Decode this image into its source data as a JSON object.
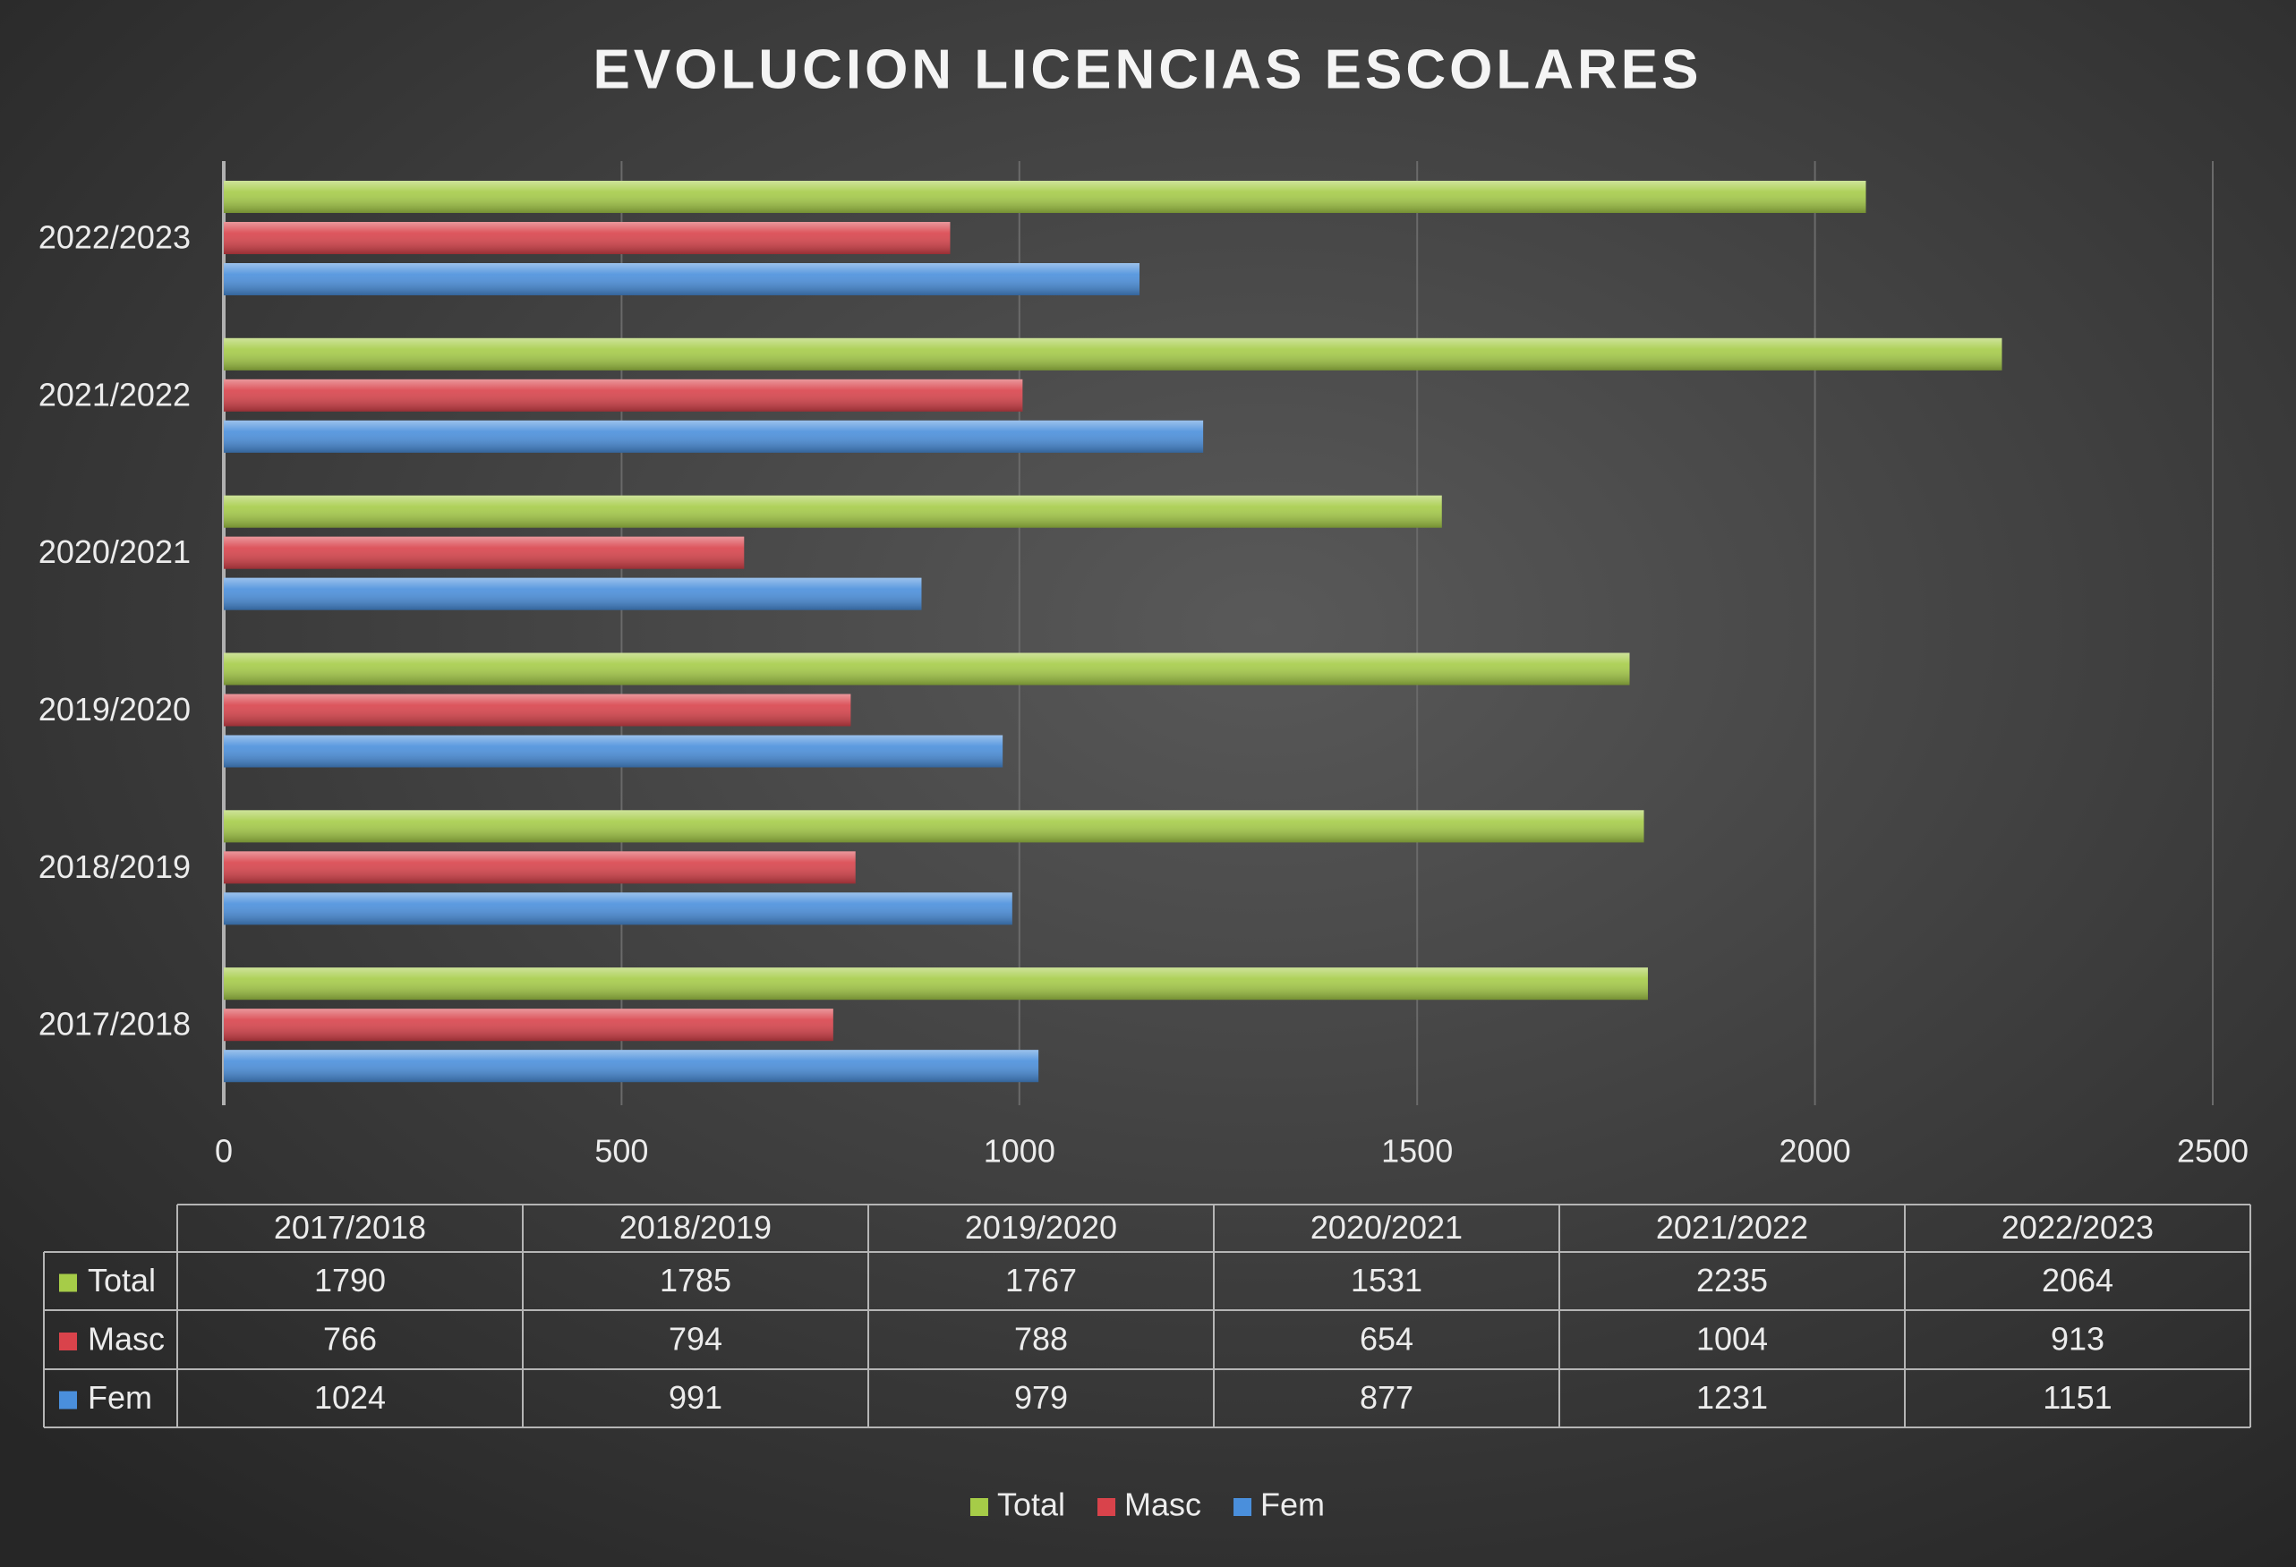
{
  "chart_data": {
    "type": "bar",
    "orientation": "horizontal",
    "title": "EVOLUCION LICENCIAS ESCOLARES",
    "categories": [
      "2017/2018",
      "2018/2019",
      "2019/2020",
      "2020/2021",
      "2021/2022",
      "2022/2023"
    ],
    "series": [
      {
        "name": "Total",
        "color": "#a6cc48",
        "values": [
          1790,
          1785,
          1767,
          1531,
          2235,
          2064
        ]
      },
      {
        "name": "Masc",
        "color": "#d9434b",
        "values": [
          766,
          794,
          788,
          654,
          1004,
          913
        ]
      },
      {
        "name": "Fem",
        "color": "#4a8fdc",
        "values": [
          1024,
          991,
          979,
          877,
          1231,
          1151
        ]
      }
    ],
    "xlim": [
      0,
      2500
    ],
    "xticks": [
      0,
      500,
      1000,
      1500,
      2000,
      2500
    ],
    "grid": true
  }
}
